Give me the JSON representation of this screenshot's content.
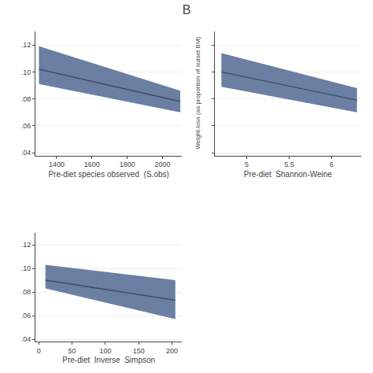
{
  "title": "B",
  "ylabel": "Weight-loss (as proportion of outset BM)",
  "chart_data": [
    {
      "type": "line",
      "x": [
        1300,
        2100
      ],
      "series": [
        {
          "type": "band",
          "color": "#6b7fa3",
          "lower": [
            0.091,
            0.07
          ],
          "upper": [
            0.119,
            0.086
          ]
        },
        {
          "type": "line",
          "color": "#3d4f6e",
          "values": [
            0.102,
            0.078
          ]
        }
      ],
      "xlabel": "Pre-diet species observed  (S.obs)",
      "xlim": [
        1280,
        2110
      ],
      "xticks": [
        1400,
        1600,
        1800,
        2000
      ],
      "ylim": [
        0.038,
        0.13
      ],
      "yticks": [
        {
          "value": 0.04,
          "label": ".04"
        },
        {
          "value": 0.06,
          "label": ".06"
        },
        {
          "value": 0.08,
          "label": ".08"
        },
        {
          "value": 0.1,
          "label": ".10"
        },
        {
          "value": 0.12,
          "label": ".12"
        }
      ],
      "grid": "y"
    },
    {
      "type": "line",
      "x": [
        4.7,
        6.3
      ],
      "series": [
        {
          "type": "band",
          "color": "#6b7fa3",
          "lower": [
            0.089,
            0.07
          ],
          "upper": [
            0.114,
            0.088
          ]
        },
        {
          "type": "line",
          "color": "#3d4f6e",
          "values": [
            0.1,
            0.079
          ]
        }
      ],
      "xlabel": "Pre-diet  Shannon-Weine",
      "xlim": [
        4.62,
        6.35
      ],
      "xticks": [
        5,
        5.5,
        6
      ],
      "ylim": [
        0.038,
        0.13
      ],
      "yticks": [
        0.04,
        0.06,
        0.08,
        0.1,
        0.12
      ],
      "tick_labels": "x",
      "grid": "y"
    },
    {
      "type": "line",
      "x": [
        10,
        205
      ],
      "series": [
        {
          "type": "band",
          "color": "#6b7fa3",
          "lower": [
            0.083,
            0.057
          ],
          "upper": [
            0.103,
            0.09
          ]
        },
        {
          "type": "line",
          "color": "#3d4f6e",
          "values": [
            0.09,
            0.073
          ]
        }
      ],
      "xlabel": "Pre-diet  Inverse  Simpson",
      "xlim": [
        -5,
        215
      ],
      "xticks": [
        0,
        50,
        100,
        150,
        200
      ],
      "ylim": [
        0.038,
        0.13
      ],
      "yticks": [
        {
          "value": 0.04,
          "label": ".04"
        },
        {
          "value": 0.06,
          "label": ".06"
        },
        {
          "value": 0.08,
          "label": ".08"
        },
        {
          "value": 0.1,
          "label": ".10"
        },
        {
          "value": 0.12,
          "label": ".12"
        }
      ],
      "grid": "y"
    }
  ]
}
